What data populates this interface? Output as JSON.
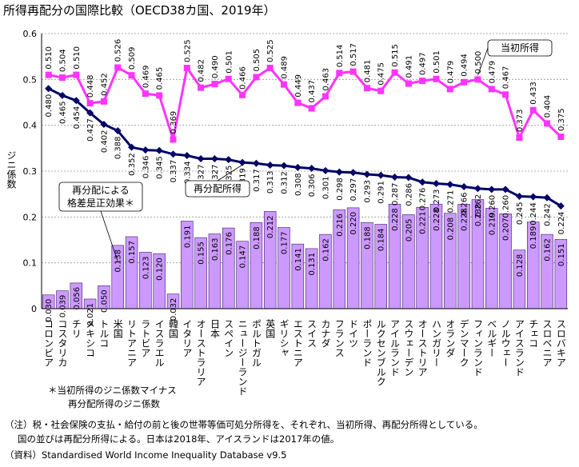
{
  "title": "所得再配分の国際比較（OECD38カ国、2019年）",
  "notes": {
    "note1": "（注）税・社会保険の支払・給付の前と後の世帯等価可処分所得を、それぞれ、当初所得、再配分所得としている。",
    "note2": "国の並びは再配分所得による。日本は2018年、アイスランドは2017年の値。",
    "source": "（資料）Standardised World Income Inequality Database v9.5"
  },
  "chart_data": {
    "type": "bar+line",
    "ylabel": "ジニ係数",
    "ylim": [
      0,
      0.6
    ],
    "yticks": [
      "0",
      "0.1",
      "0.2",
      "0.3",
      "0.4",
      "0.5",
      "0.6"
    ],
    "categories": [
      "コロンビア",
      "コスタリカ",
      "チリ",
      "メキシコ",
      "トルコ",
      "米国",
      "リトアニア",
      "ラトビア",
      "イスラエル",
      "韓国",
      "イタリア",
      "オーストラリア",
      "日本",
      "スペイン",
      "ニュージーランド",
      "ポルトガル",
      "英国",
      "ギリシャ",
      "エストニア",
      "スイス",
      "カナダ",
      "フランス",
      "ドイツ",
      "ポーランド",
      "ルクセンブルク",
      "アイルランド",
      "スウェーデン",
      "オーストリア",
      "ハンガリー",
      "オランダ",
      "デンマーク",
      "フィンランド",
      "ベルギー",
      "ノルウェー",
      "アイスランド",
      "チェコ",
      "スロベニア",
      "スロバキア"
    ],
    "series": [
      {
        "name": "当初所得",
        "type": "line",
        "color": "#ff33ff",
        "values": [
          0.51,
          0.504,
          0.51,
          0.448,
          0.452,
          0.526,
          0.509,
          0.469,
          0.465,
          0.369,
          0.525,
          0.482,
          0.49,
          0.501,
          0.466,
          0.505,
          0.525,
          0.489,
          0.449,
          0.437,
          0.463,
          0.514,
          0.517,
          0.481,
          0.475,
          0.515,
          0.491,
          0.497,
          0.501,
          0.479,
          0.494,
          0.5,
          0.479,
          0.467,
          0.373,
          0.433,
          0.404,
          0.375
        ]
      },
      {
        "name": "再分配所得",
        "type": "line",
        "color": "#000066",
        "values": [
          0.48,
          0.465,
          0.454,
          0.427,
          0.402,
          0.388,
          0.352,
          0.346,
          0.345,
          0.337,
          0.334,
          0.327,
          0.327,
          0.325,
          0.319,
          0.317,
          0.313,
          0.312,
          0.308,
          0.306,
          0.301,
          0.298,
          0.297,
          0.293,
          0.291,
          0.287,
          0.286,
          0.276,
          0.273,
          0.271,
          0.266,
          0.262,
          0.26,
          0.26,
          0.245,
          0.244,
          0.242,
          0.224
        ]
      },
      {
        "name": "再分配による格差是正効果",
        "type": "bar",
        "color": "#cc99ff",
        "values": [
          0.03,
          0.039,
          0.056,
          0.021,
          0.05,
          0.138,
          0.157,
          0.123,
          0.12,
          0.032,
          0.191,
          0.155,
          0.163,
          0.176,
          0.147,
          0.188,
          0.212,
          0.177,
          0.141,
          0.131,
          0.162,
          0.216,
          0.22,
          0.188,
          0.184,
          0.228,
          0.205,
          0.221,
          0.228,
          0.208,
          0.228,
          0.238,
          0.219,
          0.207,
          0.128,
          0.189,
          0.162,
          0.151
        ]
      }
    ],
    "annotations": {
      "initial_label": "当初所得",
      "redistributed_label": "再分配所得",
      "effect_label_line1": "再分配による",
      "effect_label_line2": "格差是正効果＊",
      "footnote_line1": "＊当初所得のジニ係数マイナス",
      "footnote_line2": "再分配所得のジニ係数"
    }
  }
}
